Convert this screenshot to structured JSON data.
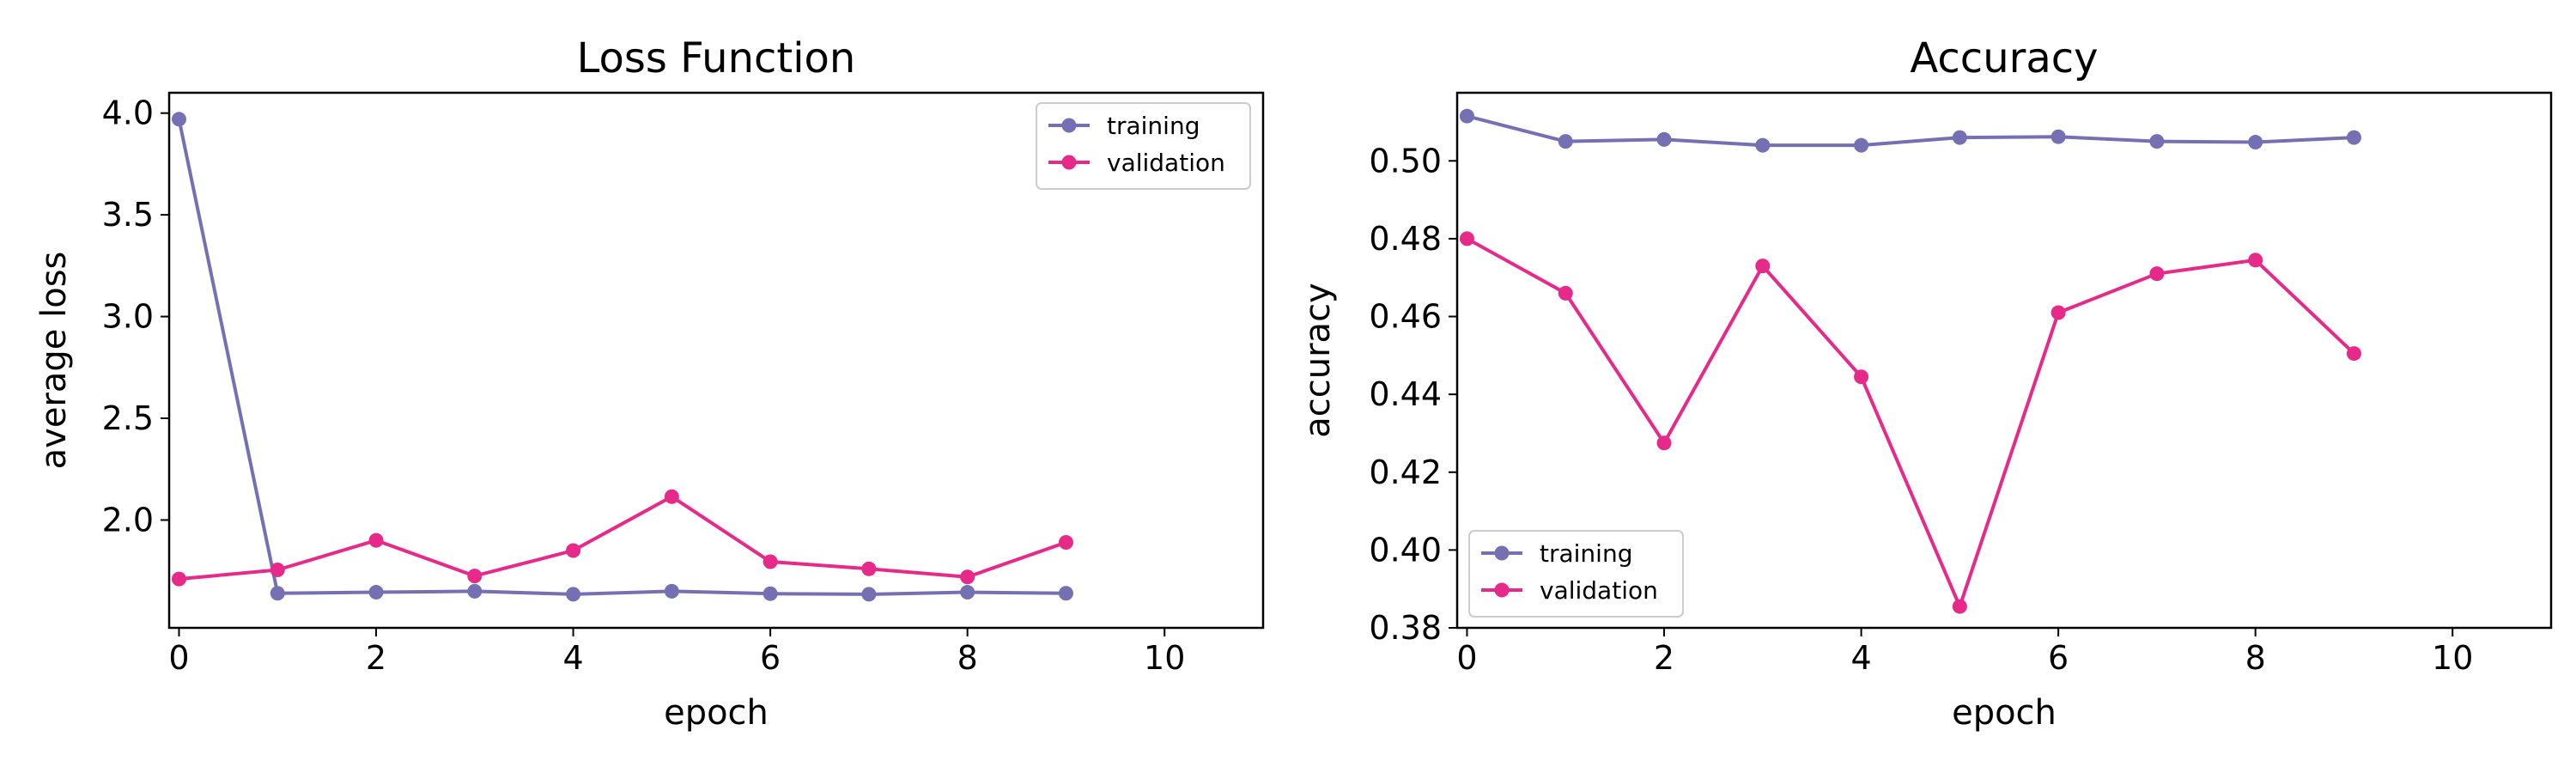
{
  "chart_data": [
    {
      "type": "line",
      "title": "Loss Function",
      "xlabel": "epoch",
      "ylabel": "average loss",
      "xlim": [
        -0.1,
        11
      ],
      "ylim": [
        1.47,
        4.1
      ],
      "xticks": [
        0,
        2,
        4,
        6,
        8,
        10
      ],
      "yticks": [
        2.0,
        2.5,
        3.0,
        3.5,
        4.0
      ],
      "xtick_labels": [
        "0",
        "2",
        "4",
        "6",
        "8",
        "10"
      ],
      "ytick_labels": [
        "2.0",
        "2.5",
        "3.0",
        "3.5",
        "4.0"
      ],
      "grid": false,
      "legend_position": "top-right",
      "x": [
        0,
        1,
        2,
        3,
        4,
        5,
        6,
        7,
        8,
        9
      ],
      "series": [
        {
          "name": "training",
          "color": "#7570b3",
          "values": [
            3.97,
            1.64,
            1.645,
            1.65,
            1.635,
            1.65,
            1.638,
            1.635,
            1.645,
            1.64
          ]
        },
        {
          "name": "validation",
          "color": "#e7298a",
          "values": [
            1.71,
            1.755,
            1.9,
            1.725,
            1.85,
            2.115,
            1.795,
            1.76,
            1.72,
            1.89
          ]
        }
      ]
    },
    {
      "type": "line",
      "title": "Accuracy",
      "xlabel": "epoch",
      "ylabel": "accuracy",
      "xlim": [
        -0.1,
        11
      ],
      "ylim": [
        0.38,
        0.5175
      ],
      "xticks": [
        0,
        2,
        4,
        6,
        8,
        10
      ],
      "yticks": [
        0.38,
        0.4,
        0.42,
        0.44,
        0.46,
        0.48,
        0.5
      ],
      "xtick_labels": [
        "0",
        "2",
        "4",
        "6",
        "8",
        "10"
      ],
      "ytick_labels": [
        "0.38",
        "0.40",
        "0.42",
        "0.44",
        "0.46",
        "0.48",
        "0.50"
      ],
      "grid": false,
      "legend_position": "bottom-left",
      "x": [
        0,
        1,
        2,
        3,
        4,
        5,
        6,
        7,
        8,
        9
      ],
      "series": [
        {
          "name": "training",
          "color": "#7570b3",
          "values": [
            0.5115,
            0.505,
            0.5055,
            0.504,
            0.504,
            0.506,
            0.5062,
            0.505,
            0.5048,
            0.506
          ]
        },
        {
          "name": "validation",
          "color": "#e7298a",
          "values": [
            0.48,
            0.466,
            0.4275,
            0.473,
            0.4445,
            0.3855,
            0.461,
            0.471,
            0.4745,
            0.4505
          ]
        }
      ]
    }
  ]
}
